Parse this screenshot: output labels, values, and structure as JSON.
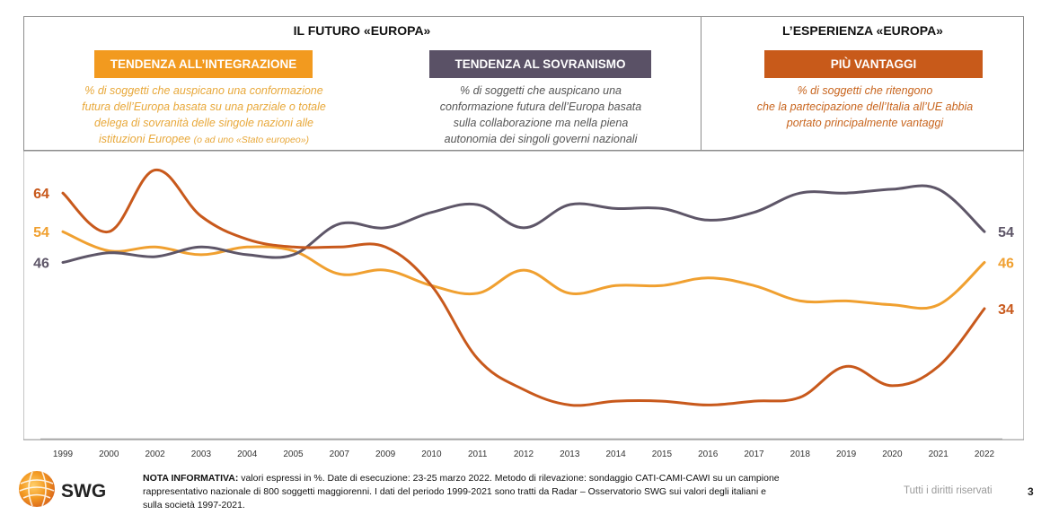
{
  "header": {
    "future_title": "IL FUTURO «EUROPA»",
    "experience_title": "L’ESPERIENZA «EUROPA»"
  },
  "panels": [
    {
      "label": "TENDENZA ALL’INTEGRAZIONE",
      "color": "#f29a1f",
      "text_color": "#e8a83a",
      "desc_lines": [
        "% di soggetti che auspicano una conformazione",
        "futura dell’Europa basata su una parziale o totale",
        "delega di sovranità delle singole nazioni alle"
      ],
      "desc_last": "istituzioni Europee",
      "desc_note": "(o ad uno «Stato europeo»)"
    },
    {
      "label": "TENDENZA AL SOVRANISMO",
      "color": "#5a5166",
      "text_color": "#555555",
      "desc_lines": [
        "% di soggetti che auspicano una",
        "conformazione futura dell’Europa basata",
        "sulla collaborazione ma nella piena",
        "autonomia dei singoli governi nazionali"
      ]
    },
    {
      "label": "PIÙ VANTAGGI",
      "color": "#c85a1a",
      "text_color": "#c8651e",
      "desc_lines": [
        "% di soggetti che ritengono",
        "che la partecipazione dell’Italia all’UE abbia",
        "portato principalmente vantaggi"
      ]
    }
  ],
  "chart_data": {
    "type": "line",
    "categories": [
      "1999",
      "2000",
      "2002",
      "2003",
      "2004",
      "2005",
      "2007",
      "2009",
      "2010",
      "2011",
      "2012",
      "2013",
      "2014",
      "2015",
      "2016",
      "2017",
      "2018",
      "2019",
      "2020",
      "2021",
      "2022"
    ],
    "series": [
      {
        "color": "#f0a030",
        "values": [
          54,
          49,
          50,
          48,
          50,
          49,
          43,
          44,
          40,
          38,
          44,
          38,
          40,
          40,
          42,
          40,
          36,
          36,
          35,
          35,
          46
        ],
        "start_label": "54",
        "end_label": "46"
      },
      {
        "color": "#5e5668",
        "values": [
          46,
          48.5,
          47.5,
          50,
          48,
          48,
          56,
          55,
          59,
          61,
          55,
          61,
          60,
          60,
          57,
          59,
          64,
          64,
          65,
          65,
          54
        ],
        "start_label": "46",
        "end_label": "54"
      },
      {
        "color": "#c8591c",
        "values": [
          64,
          54,
          70,
          58,
          52,
          50,
          50,
          50,
          40,
          21,
          13,
          9,
          10,
          10,
          9,
          10,
          11,
          19,
          14,
          19,
          34
        ],
        "start_label": "64",
        "end_label": "34"
      }
    ],
    "ylim": [
      0,
      75
    ],
    "grid": false,
    "legend": "none"
  },
  "footer": {
    "note_label": "NOTA INFORMATIVA:",
    "note_lines": [
      " valori espressi in %. Date di esecuzione: 23-25 marzo 2022. Metodo di rilevazione: sondaggio CATI-CAMI-CAWI su un campione",
      "rappresentativo nazionale di 800 soggetti maggiorenni. I dati del periodo 1999-2021 sono tratti da Radar – Osservatorio SWG sui valori degli italiani e",
      "sulla società 1997-2021."
    ],
    "rights": "Tutti i diritti riservati",
    "page": "3",
    "logo_text": "SWG"
  }
}
